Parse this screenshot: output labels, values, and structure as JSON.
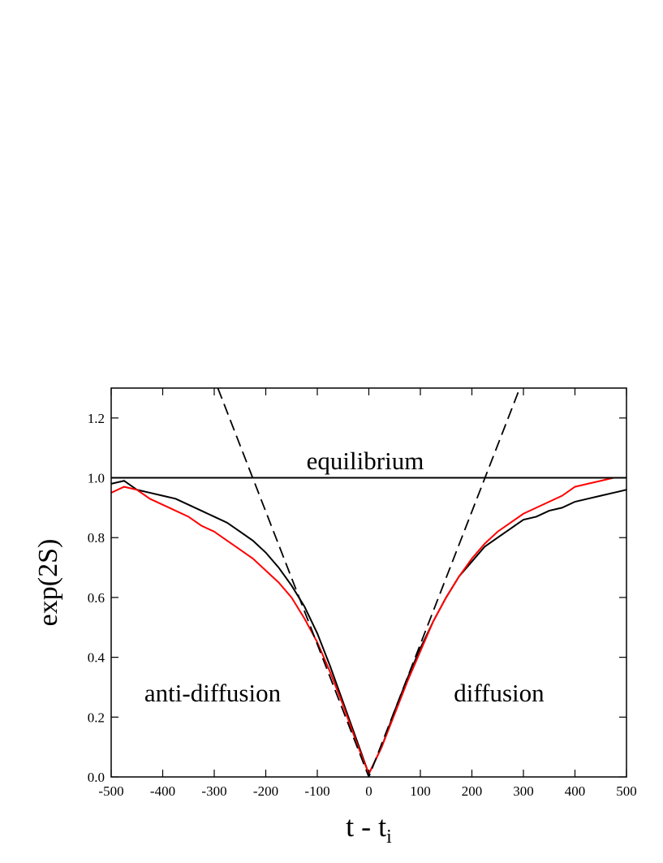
{
  "chart_data": {
    "type": "line",
    "y_label": "exp(2S)",
    "x_label": {
      "text": "t - t",
      "subscript": "i"
    },
    "annotations": [
      "equilibrium",
      "anti-diffusion",
      "diffusion"
    ],
    "xlim": [
      -500,
      500
    ],
    "xticks": [
      -500,
      -400,
      -300,
      -200,
      -100,
      0,
      100,
      200,
      300,
      400,
      500
    ],
    "ylim": [
      0,
      1.3
    ],
    "yticks": [
      {
        "value": 0,
        "label": "0.0"
      },
      0.2,
      0.4,
      0.6,
      0.8,
      {
        "value": 1,
        "label": "1.0"
      },
      1.2
    ],
    "x": [
      -500,
      -475,
      -450,
      -425,
      -400,
      -375,
      -350,
      -325,
      -300,
      -275,
      -250,
      -225,
      -200,
      -175,
      -150,
      -125,
      -100,
      -75,
      -50,
      -25,
      0,
      25,
      50,
      75,
      100,
      125,
      150,
      175,
      200,
      225,
      250,
      275,
      300,
      325,
      350,
      375,
      400,
      425,
      450,
      475,
      500
    ],
    "series": [
      {
        "color": "#000000",
        "values": [
          0.98,
          0.99,
          0.96,
          0.95,
          0.94,
          0.93,
          0.91,
          0.89,
          0.87,
          0.85,
          0.82,
          0.79,
          0.75,
          0.7,
          0.64,
          0.57,
          0.48,
          0.37,
          0.25,
          0.13,
          0.01,
          0.1,
          0.22,
          0.33,
          0.43,
          0.52,
          0.6,
          0.67,
          0.72,
          0.77,
          0.8,
          0.83,
          0.86,
          0.87,
          0.89,
          0.9,
          0.92,
          0.93,
          0.94,
          0.95,
          0.96
        ]
      },
      {
        "color": "#ff0000",
        "values": [
          0.95,
          0.97,
          0.96,
          0.93,
          0.91,
          0.89,
          0.87,
          0.84,
          0.82,
          0.79,
          0.76,
          0.73,
          0.69,
          0.65,
          0.6,
          0.53,
          0.45,
          0.35,
          0.24,
          0.12,
          0.01,
          0.1,
          0.21,
          0.32,
          0.42,
          0.52,
          0.6,
          0.67,
          0.73,
          0.78,
          0.82,
          0.85,
          0.88,
          0.9,
          0.92,
          0.94,
          0.97,
          0.98,
          0.99,
          1.0,
          1.0
        ]
      },
      {
        "color": "#000000",
        "dashed": true,
        "x": [
          -293,
          0,
          293
        ],
        "values": [
          1.3,
          0,
          1.3
        ]
      },
      {
        "color": "#000000",
        "x": [
          -500,
          500
        ],
        "values": [
          1,
          1
        ]
      }
    ]
  }
}
